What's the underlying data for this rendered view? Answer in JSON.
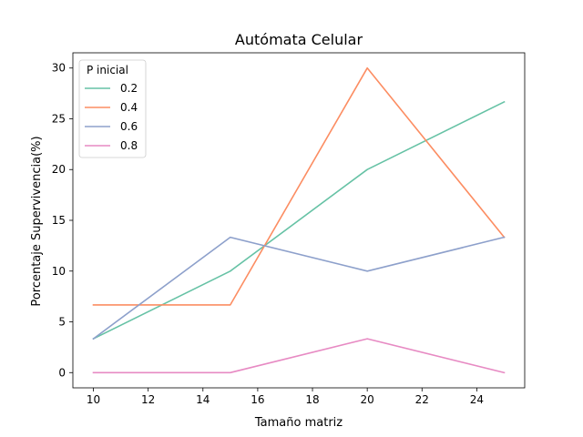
{
  "chart_data": {
    "type": "line",
    "title": "Autómata Celular",
    "xlabel": "Tamaño matriz",
    "ylabel": "Porcentaje Supervivencia(%)",
    "xlim": [
      9.25,
      25.75
    ],
    "ylim": [
      -1.5,
      31.5
    ],
    "xticks": [
      10,
      12,
      14,
      16,
      18,
      20,
      22,
      24
    ],
    "yticks": [
      0,
      5,
      10,
      15,
      20,
      25,
      30
    ],
    "x": [
      10,
      15,
      20,
      25
    ],
    "grid": false,
    "legend": {
      "title": "P inicial",
      "placement": "top-left"
    },
    "series": [
      {
        "name": "0.2",
        "color": "#66c2a5",
        "values": [
          3.33,
          10.0,
          20.0,
          26.67
        ]
      },
      {
        "name": "0.4",
        "color": "#fc8d62",
        "values": [
          6.67,
          6.67,
          30.0,
          13.33
        ]
      },
      {
        "name": "0.6",
        "color": "#8da0cb",
        "values": [
          3.33,
          13.33,
          10.0,
          13.33
        ]
      },
      {
        "name": "0.8",
        "color": "#e78ac3",
        "values": [
          0.0,
          0.0,
          3.33,
          0.0
        ]
      }
    ]
  }
}
